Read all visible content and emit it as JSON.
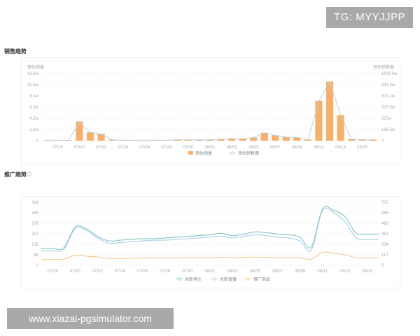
{
  "watermarks": {
    "top": "TG: MYYJJPP",
    "bottom": "www.xiazai-pgsimulator.com"
  },
  "sections": {
    "sales_title": "销售趋势",
    "promo_title": "推广趋势",
    "info_icon": "info-icon"
  },
  "colors": {
    "bar": "#f5b06a",
    "sales_line": "#b7d3ea",
    "promo_teal": "#7ec4c1",
    "promo_blue": "#a9cfe9",
    "promo_orange": "#f5c88e"
  },
  "chart_data": [
    {
      "type": "bar",
      "title": "",
      "left_axis_label": "预估销量",
      "right_axis_label": "预估销售额",
      "x_tick_labels": [
        "07/18",
        "07/20",
        "07/22",
        "07/24",
        "07/26",
        "07/28",
        "07/30",
        "08/01",
        "08/03",
        "08/05",
        "08/07",
        "08/09",
        "08/11",
        "08/13",
        "08/15"
      ],
      "left_ticks": [
        "0",
        "2.1w",
        "4.2w",
        "6.3w",
        "8.4w",
        "10.5w",
        "12.6w"
      ],
      "right_ticks": [
        "0",
        "168.5w",
        "337w",
        "505.6w",
        "673.1w",
        "841.4w",
        "1009.8w"
      ],
      "ylim_left": [
        0,
        12.6
      ],
      "ylim_right": [
        0,
        1009.8
      ],
      "units": "w",
      "legend": [
        "预估销量",
        "预估销售额"
      ],
      "legend_position": "bottom-center",
      "categories": [
        "07/17",
        "07/18",
        "07/19",
        "07/20",
        "07/21",
        "07/22",
        "07/23",
        "07/24",
        "07/25",
        "07/26",
        "07/27",
        "07/28",
        "07/29",
        "07/30",
        "07/31",
        "08/01",
        "08/02",
        "08/03",
        "08/04",
        "08/05",
        "08/06",
        "08/07",
        "08/08",
        "08/09",
        "08/10",
        "08/11",
        "08/12",
        "08/13",
        "08/14",
        "08/15",
        "08/16"
      ],
      "series": [
        {
          "name": "预估销量",
          "kind": "bar",
          "axis": "left",
          "values": [
            0.1,
            0.1,
            0.1,
            3.6,
            1.6,
            1.3,
            0.2,
            0.1,
            0.1,
            0.1,
            0.1,
            0.1,
            0.2,
            0.2,
            0.2,
            0.2,
            0.3,
            0.4,
            0.4,
            0.6,
            1.5,
            1.0,
            0.7,
            0.6,
            0.2,
            7.5,
            11.1,
            4.8,
            0.3,
            0.2,
            0.2
          ]
        },
        {
          "name": "预估销售额",
          "kind": "line",
          "axis": "right",
          "values": [
            8,
            8,
            8,
            270,
            125,
            100,
            15,
            8,
            8,
            8,
            8,
            8,
            15,
            15,
            15,
            15,
            24,
            32,
            32,
            48,
            115,
            80,
            56,
            48,
            15,
            595,
            890,
            385,
            24,
            15,
            15
          ]
        }
      ]
    },
    {
      "type": "line",
      "title": "",
      "x_tick_labels": [
        "07/18",
        "07/20",
        "07/22",
        "07/24",
        "07/26",
        "07/28",
        "07/30",
        "08/01",
        "08/03",
        "08/05",
        "08/07",
        "08/09",
        "08/11",
        "08/13",
        "08/15"
      ],
      "left_ticks": [
        "0",
        "69",
        "138",
        "207",
        "276",
        "345",
        "414"
      ],
      "right_ticks": [
        "0",
        "117",
        "234",
        "351",
        "468",
        "585",
        "702"
      ],
      "ylim_left": [
        0,
        414
      ],
      "ylim_right": [
        0,
        702
      ],
      "legend": [
        "关联博主",
        "关联直播",
        "推广商品"
      ],
      "legend_position": "bottom-center",
      "categories": [
        "07/17",
        "07/18",
        "07/19",
        "07/20",
        "07/21",
        "07/22",
        "07/23",
        "07/24",
        "07/25",
        "07/26",
        "07/27",
        "07/28",
        "07/29",
        "07/30",
        "07/31",
        "08/01",
        "08/02",
        "08/03",
        "08/04",
        "08/05",
        "08/06",
        "08/07",
        "08/08",
        "08/09",
        "08/10",
        "08/11",
        "08/12",
        "08/13",
        "08/14",
        "08/15",
        "08/16"
      ],
      "series": [
        {
          "name": "关联博主",
          "axis": "left",
          "values": [
            110,
            110,
            115,
            250,
            240,
            190,
            160,
            165,
            170,
            175,
            175,
            180,
            185,
            190,
            195,
            200,
            210,
            195,
            205,
            220,
            215,
            205,
            200,
            185,
            120,
            370,
            360,
            320,
            210,
            205,
            205
          ]
        },
        {
          "name": "关联直播",
          "axis": "left",
          "values": [
            95,
            95,
            105,
            240,
            230,
            180,
            145,
            150,
            155,
            160,
            165,
            165,
            170,
            175,
            180,
            185,
            190,
            180,
            190,
            200,
            195,
            185,
            180,
            160,
            100,
            360,
            345,
            285,
            180,
            170,
            170
          ]
        },
        {
          "name": "推广商品",
          "axis": "left",
          "values": [
            38,
            38,
            40,
            65,
            60,
            55,
            45,
            45,
            46,
            47,
            48,
            48,
            48,
            50,
            50,
            50,
            52,
            50,
            52,
            54,
            52,
            50,
            50,
            48,
            40,
            85,
            80,
            70,
            50,
            48,
            48
          ]
        }
      ]
    }
  ]
}
